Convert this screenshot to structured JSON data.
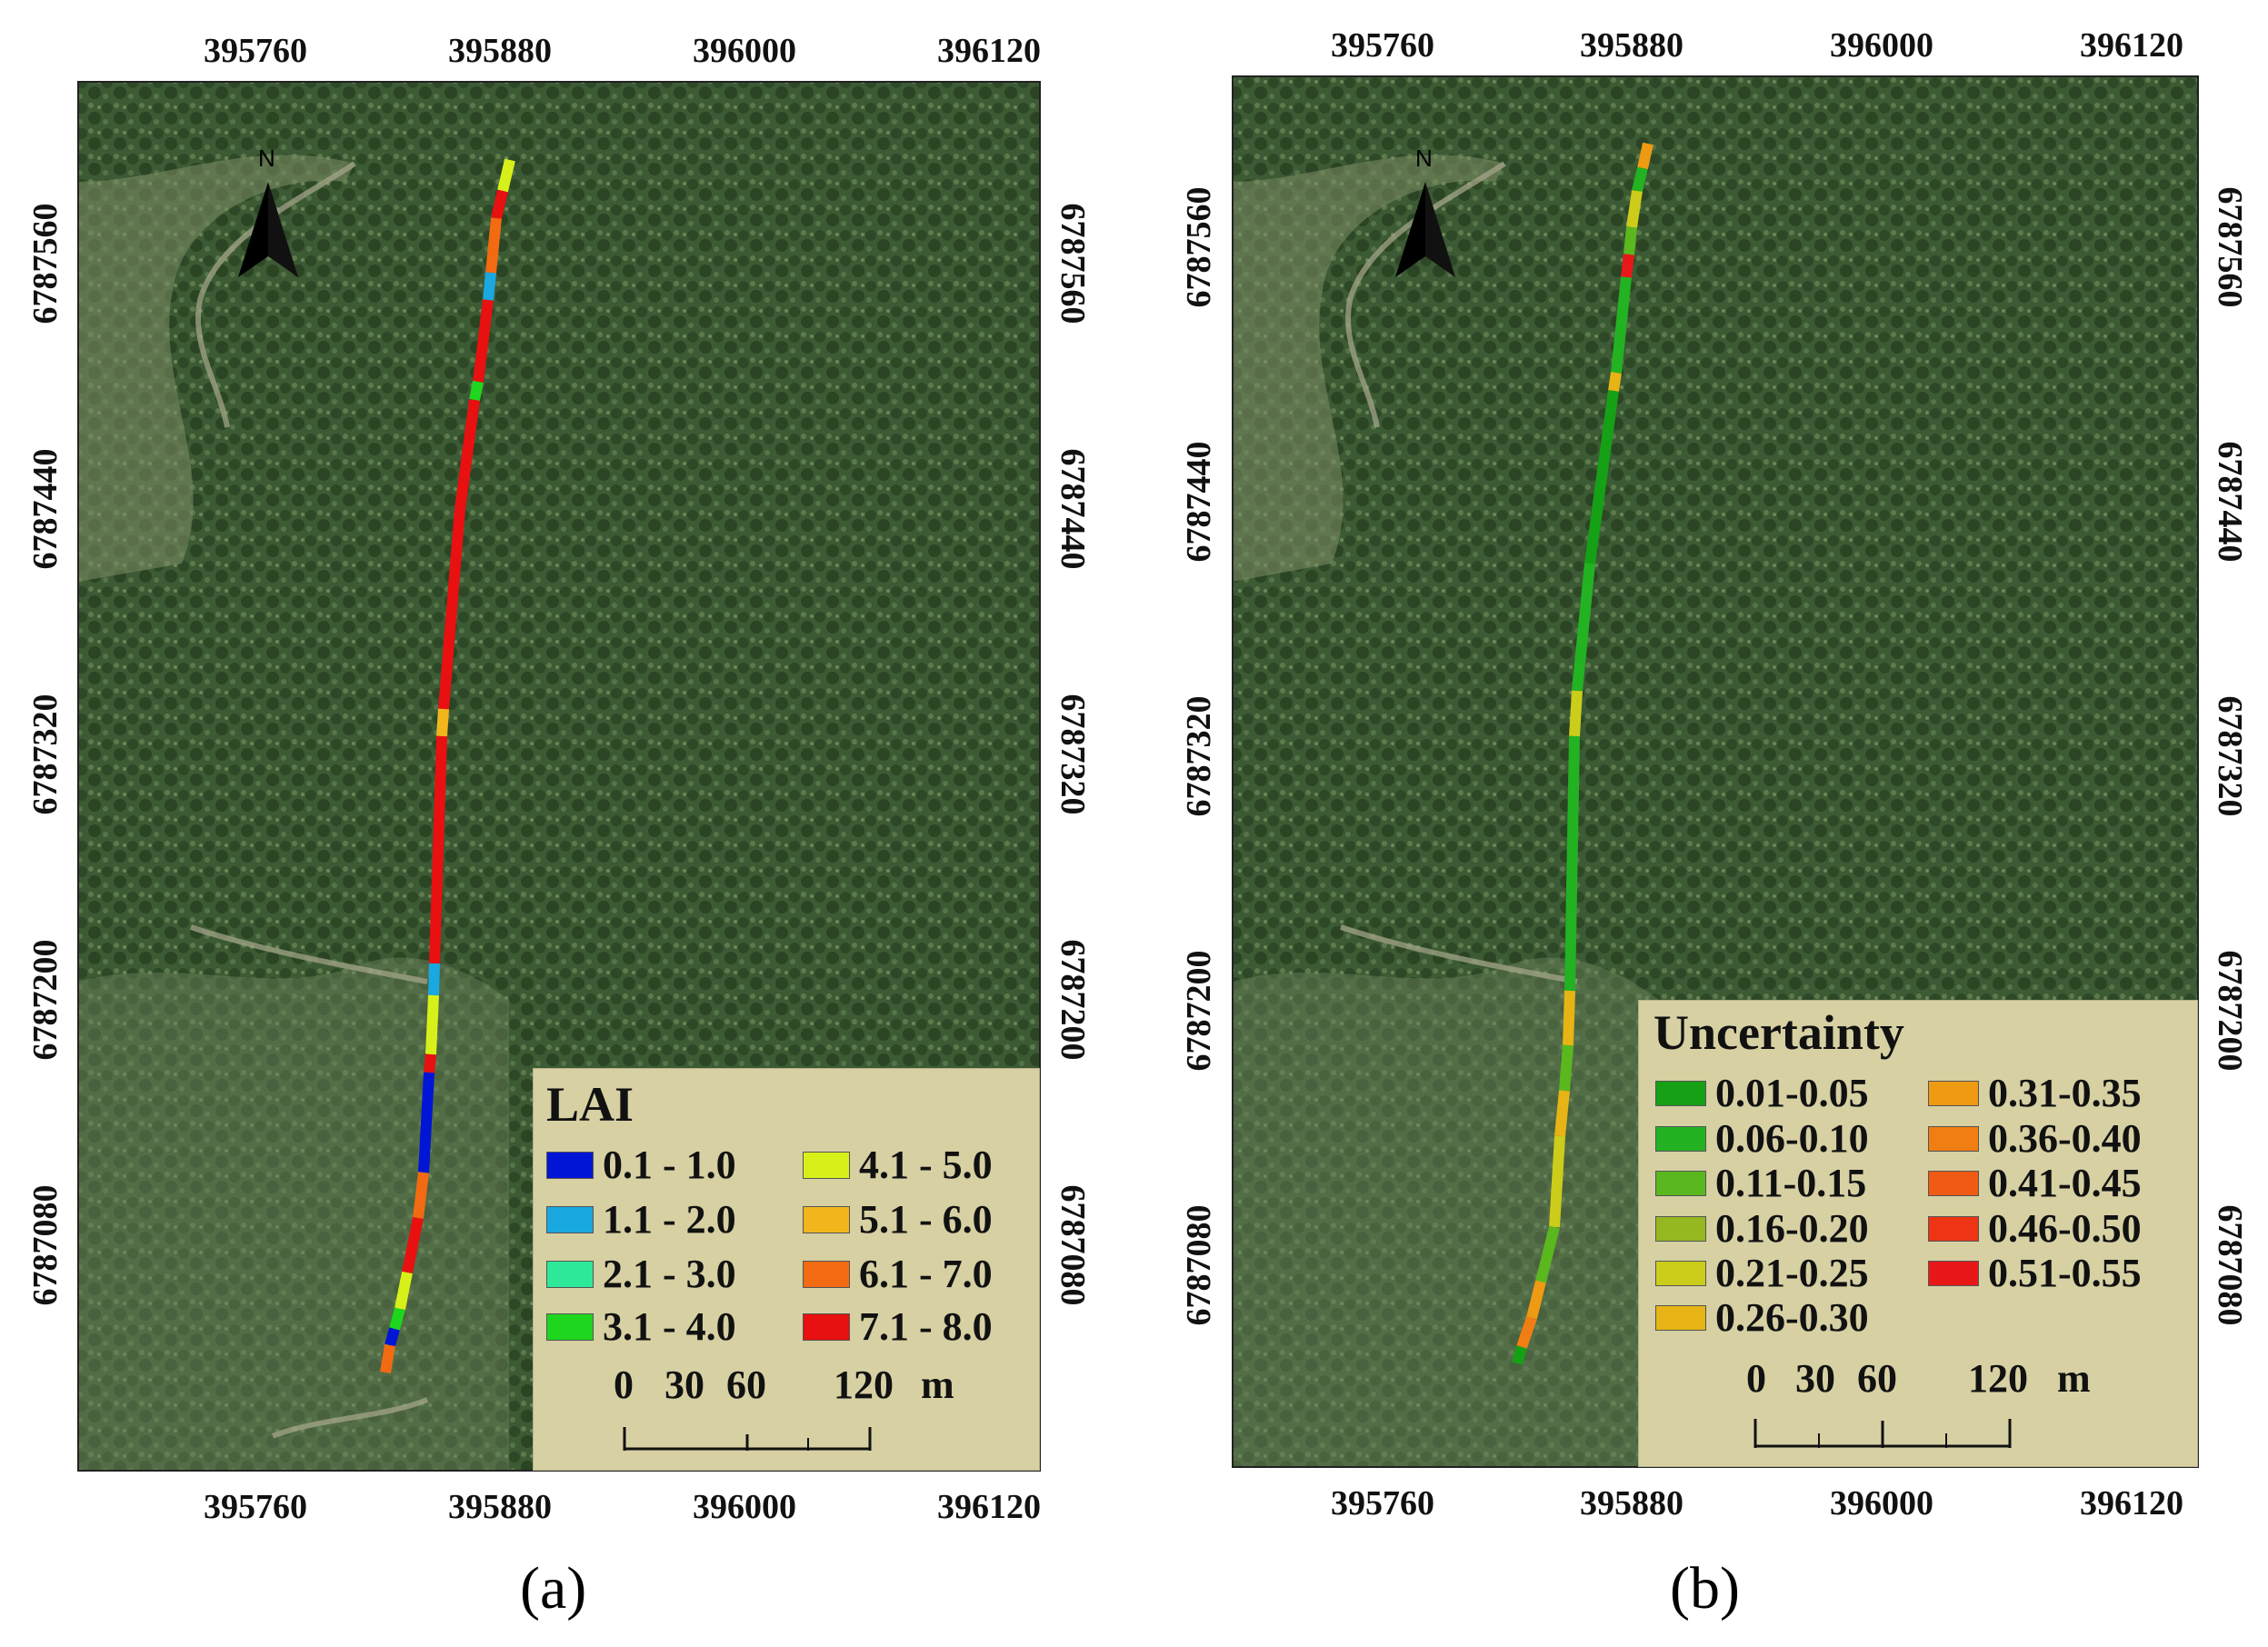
{
  "panels": [
    {
      "id": "a",
      "caption": "(a)",
      "x_ticks": [
        "395760",
        "395880",
        "396000",
        "396120"
      ],
      "y_ticks": [
        "6787560",
        "6787440",
        "6787320",
        "6787200",
        "6787080"
      ],
      "north_arrow_label": "N",
      "legend": {
        "title": "LAI",
        "items": [
          {
            "label": "0.1 - 1.0",
            "color": "#0015d6"
          },
          {
            "label": "1.1 - 2.0",
            "color": "#1aa8e0"
          },
          {
            "label": "2.1 - 3.0",
            "color": "#2ee89a"
          },
          {
            "label": "3.1 - 4.0",
            "color": "#1ed61e"
          },
          {
            "label": "4.1 - 5.0",
            "color": "#d8f01a"
          },
          {
            "label": "5.1 - 6.0",
            "color": "#f2b61c"
          },
          {
            "label": "6.1 - 7.0",
            "color": "#f26a12"
          },
          {
            "label": "7.1 - 8.0",
            "color": "#e81010"
          }
        ]
      },
      "scale_bar": {
        "labels": [
          "0",
          "30",
          "60",
          "120",
          "m"
        ]
      }
    },
    {
      "id": "b",
      "caption": "(b)",
      "x_ticks": [
        "395760",
        "395880",
        "396000",
        "396120"
      ],
      "y_ticks": [
        "6787560",
        "6787440",
        "6787320",
        "6787200",
        "6787080"
      ],
      "north_arrow_label": "N",
      "legend": {
        "title": "Uncertainty",
        "items": [
          {
            "label": "0.01-0.05",
            "color": "#16a016"
          },
          {
            "label": "0.06-0.10",
            "color": "#22b222"
          },
          {
            "label": "0.11-0.15",
            "color": "#5ab81e"
          },
          {
            "label": "0.16-0.20",
            "color": "#95b820"
          },
          {
            "label": "0.21-0.25",
            "color": "#cccc1a"
          },
          {
            "label": "0.26-0.30",
            "color": "#e6b414"
          },
          {
            "label": "0.31-0.35",
            "color": "#ee9a12"
          },
          {
            "label": "0.36-0.40",
            "color": "#f07e12"
          },
          {
            "label": "0.41-0.45",
            "color": "#f05a12"
          },
          {
            "label": "0.46-0.50",
            "color": "#ee3414"
          },
          {
            "label": "0.51-0.55",
            "color": "#e81818"
          }
        ]
      },
      "scale_bar": {
        "labels": [
          "0",
          "30",
          "60",
          "120",
          "m"
        ]
      }
    }
  ]
}
